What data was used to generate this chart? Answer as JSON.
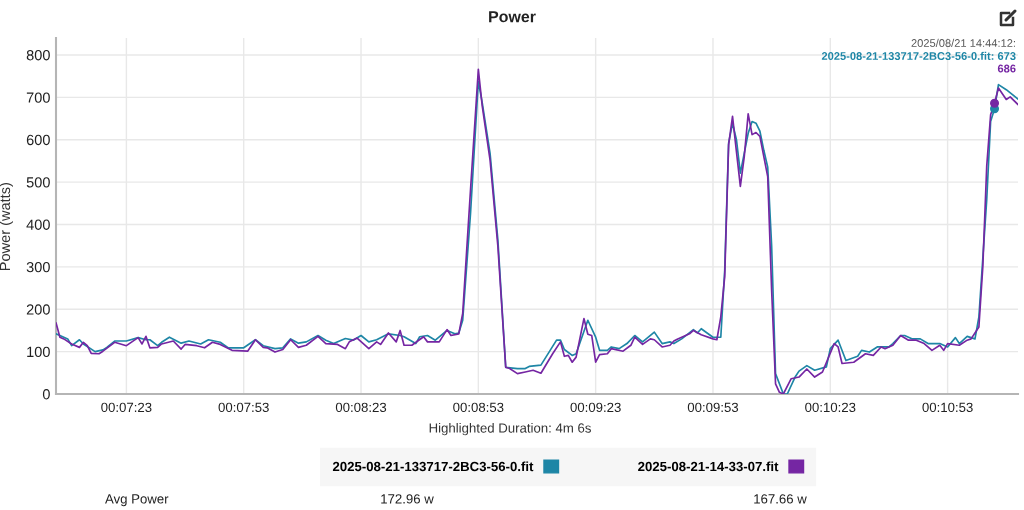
{
  "chart_data": {
    "type": "line",
    "title": "Power",
    "xlabel": "Highlighted Duration: 4m 6s",
    "ylabel": "Power (watts)",
    "xlim": [
      425,
      671
    ],
    "xticks": [
      {
        "value": 443,
        "label": "00:07:23"
      },
      {
        "value": 473,
        "label": "00:07:53"
      },
      {
        "value": 503,
        "label": "00:08:23"
      },
      {
        "value": 533,
        "label": "00:08:53"
      },
      {
        "value": 563,
        "label": "00:09:23"
      },
      {
        "value": 593,
        "label": "00:09:53"
      },
      {
        "value": 623,
        "label": "00:10:23"
      },
      {
        "value": 653,
        "label": "00:10:53"
      }
    ],
    "ylim": [
      0,
      840
    ],
    "yticks": [
      0,
      100,
      200,
      300,
      400,
      500,
      600,
      700,
      800
    ],
    "grid": true,
    "legend": "bottom",
    "series": [
      {
        "name": "2025-08-21-133717-2BC3-56-0.fit",
        "color": "#1e86a6",
        "x": [
          425,
          426,
          428,
          429,
          431,
          432,
          435,
          437,
          438,
          440,
          443,
          446,
          448,
          449,
          451,
          452,
          454,
          457,
          459,
          462,
          464,
          467,
          469,
          473,
          476,
          478,
          481,
          483,
          485,
          487,
          489,
          492,
          494,
          496,
          499,
          501,
          503,
          505,
          507,
          510,
          513,
          514,
          517,
          518,
          520,
          522,
          525,
          527,
          528,
          529,
          531,
          533,
          534,
          536,
          538,
          540,
          543,
          545,
          546,
          549,
          553,
          554,
          555,
          557,
          558,
          561,
          563,
          564,
          566,
          567,
          569,
          571,
          573,
          575,
          578,
          580,
          582,
          583,
          585,
          588,
          589,
          590,
          593,
          595,
          596,
          597,
          598,
          599,
          600,
          602,
          603,
          604,
          605,
          606,
          607,
          608,
          609,
          611,
          612,
          614,
          615,
          617,
          619,
          622,
          623,
          625,
          627,
          630,
          631,
          633,
          635,
          638,
          639,
          641,
          642,
          644,
          646,
          648,
          651,
          653,
          655,
          656,
          658,
          660,
          661,
          663,
          664,
          665,
          666,
          668,
          671
        ],
        "values": [
          142,
          138,
          130,
          114,
          128,
          118,
          100,
          104,
          110,
          125,
          125,
          133,
          128,
          128,
          114,
          122,
          134,
          120,
          125,
          118,
          128,
          122,
          109,
          109,
          128,
          114,
          107,
          109,
          130,
          120,
          123,
          138,
          127,
          119,
          131,
          127,
          138,
          123,
          128,
          142,
          138,
          135,
          119,
          135,
          138,
          127,
          150,
          142,
          144,
          174,
          426,
          738,
          687,
          568,
          363,
          63,
          60,
          60,
          65,
          68,
          127,
          127,
          105,
          91,
          95,
          174,
          134,
          103,
          103,
          111,
          107,
          119,
          138,
          123,
          146,
          119,
          123,
          119,
          130,
          152,
          144,
          154,
          134,
          134,
          292,
          592,
          639,
          600,
          521,
          615,
          643,
          639,
          620,
          575,
          535,
          350,
          48,
          0,
          0,
          40,
          54,
          67,
          56,
          64,
          107,
          127,
          79,
          89,
          103,
          99,
          111,
          111,
          119,
          138,
          138,
          130,
          130,
          119,
          119,
          111,
          133,
          119,
          136,
          130,
          182,
          458,
          643,
          673,
          730,
          718,
          696
        ]
      },
      {
        "name": "2025-08-21-14-33-07.fit",
        "color": "#7526a3",
        "x": [
          425,
          426,
          427,
          429,
          431,
          432,
          433,
          434,
          436,
          437,
          440,
          443,
          446,
          447,
          448,
          449,
          451,
          452,
          455,
          457,
          458,
          461,
          463,
          465,
          467,
          470,
          474,
          476,
          478,
          479,
          481,
          483,
          485,
          487,
          489,
          492,
          494,
          497,
          499,
          500,
          502,
          505,
          507,
          508,
          510,
          512,
          513,
          514,
          516,
          519,
          520,
          523,
          525,
          526,
          528,
          529,
          531,
          533,
          534,
          536,
          538,
          540,
          541,
          543,
          545,
          547,
          549,
          552,
          554,
          555,
          556,
          557,
          558,
          560,
          561,
          562,
          563,
          564,
          566,
          567,
          570,
          572,
          573,
          575,
          577,
          578,
          580,
          582,
          583,
          584,
          587,
          588,
          590,
          593,
          594,
          595,
          596,
          597,
          598,
          599,
          600,
          601,
          602,
          603,
          604,
          605,
          606,
          607,
          608,
          609,
          610,
          611,
          613,
          615,
          617,
          619,
          621,
          624,
          625,
          626,
          629,
          632,
          634,
          636,
          637,
          639,
          641,
          643,
          645,
          647,
          649,
          651,
          652,
          653,
          656,
          658,
          659,
          661,
          662,
          663,
          664,
          665,
          666,
          668,
          669,
          671
        ],
        "values": [
          168,
          134,
          130,
          118,
          110,
          122,
          114,
          96,
          95,
          101,
          122,
          114,
          133,
          118,
          136,
          109,
          110,
          118,
          125,
          106,
          117,
          114,
          109,
          122,
          117,
          103,
          101,
          128,
          110,
          109,
          99,
          105,
          128,
          110,
          115,
          136,
          119,
          117,
          107,
          123,
          132,
          107,
          123,
          117,
          144,
          123,
          150,
          115,
          115,
          135,
          123,
          123,
          152,
          138,
          142,
          190,
          482,
          766,
          679,
          552,
          348,
          63,
          60,
          48,
          52,
          56,
          49,
          95,
          123,
          89,
          91,
          75,
          87,
          178,
          141,
          138,
          75,
          93,
          95,
          107,
          101,
          115,
          134,
          117,
          130,
          128,
          111,
          115,
          125,
          130,
          142,
          150,
          140,
          130,
          128,
          182,
          277,
          588,
          655,
          572,
          490,
          560,
          661,
          612,
          617,
          608,
          560,
          513,
          245,
          24,
          4,
          0,
          36,
          40,
          59,
          40,
          52,
          119,
          111,
          72,
          75,
          95,
          91,
          111,
          107,
          115,
          138,
          127,
          127,
          119,
          103,
          115,
          103,
          119,
          115,
          127,
          130,
          158,
          300,
          537,
          659,
          686,
          722,
          695,
          701,
          683
        ]
      },
      {
        "type": "scatter",
        "marker": "circle",
        "color": "#1e86a6",
        "x": [
          665
        ],
        "values": [
          673
        ]
      },
      {
        "type": "scatter",
        "marker": "circle",
        "color": "#7526a3",
        "x": [
          665
        ],
        "values": [
          686
        ]
      }
    ],
    "annotations": [
      "2025/08/21 14:44:12:",
      "2025-08-21-133717-2BC3-56-0.fit: 673",
      "686",
      "Avg Power",
      "172.96 w",
      "167.66 w"
    ]
  }
}
